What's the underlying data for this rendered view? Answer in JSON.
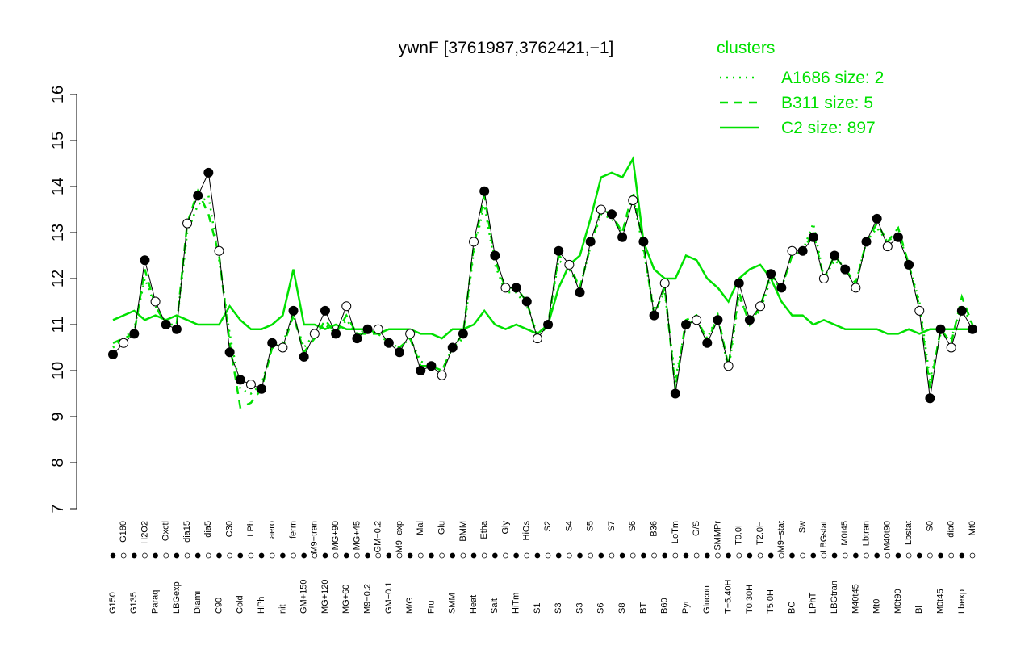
{
  "chart_data": {
    "type": "line",
    "title": "ywnF [3761987,3762421,−1]",
    "legend_title": "clusters",
    "legend_color": "#00e000",
    "categories": [
      "G150",
      "G180",
      "G135",
      "H2O2",
      "Paraq",
      "Oxctl",
      "LBGexp",
      "dia15",
      "Diami",
      "dia5",
      "C90",
      "C30",
      "Cold",
      "LPh",
      "HPh",
      "aero",
      "nit",
      "ferm",
      "GM+150",
      "M9−tran",
      "MG+120",
      "MG+90",
      "MG+60",
      "MG+45",
      "M9−0.2",
      "GM−0.2",
      "GM−0.1",
      "M9−exp",
      "M/G",
      "Mal",
      "Fru",
      "Glu",
      "SMM",
      "BMM",
      "Heat",
      "Etha",
      "Salt",
      "Gly",
      "HiTm",
      "HiOs",
      "S1",
      "S2",
      "S3",
      "S4",
      "S3",
      "S5",
      "S6",
      "S7",
      "S8",
      "S6",
      "BT",
      "B36",
      "B60",
      "LoTm",
      "Pyr",
      "G/S",
      "Glucon",
      "SMMPr",
      "T−5.40H",
      "T0.0H",
      "T0.30H",
      "T2.0H",
      "T5.0H",
      "M9−stat",
      "BC",
      "Sw",
      "LPhT",
      "LBGstat",
      "LBGtran",
      "M0t45",
      "M40t45",
      "Lbtran",
      "Mt0",
      "M40t90",
      "M0t90",
      "Lbstat",
      "Bl",
      "S0",
      "M0t45",
      "dia0",
      "Lbexp",
      "Mt0"
    ],
    "values": [
      10.35,
      10.6,
      10.8,
      12.4,
      11.5,
      11.0,
      10.9,
      13.2,
      13.8,
      14.3,
      12.6,
      10.4,
      9.8,
      9.7,
      9.6,
      10.6,
      10.5,
      11.3,
      10.3,
      10.8,
      11.3,
      10.8,
      11.4,
      10.7,
      10.9,
      10.9,
      10.6,
      10.4,
      10.8,
      10.0,
      10.1,
      9.9,
      10.5,
      10.8,
      12.8,
      13.9,
      12.5,
      11.8,
      11.8,
      11.5,
      10.7,
      11.0,
      12.6,
      12.3,
      11.7,
      12.8,
      13.5,
      13.4,
      12.9,
      13.7,
      12.8,
      11.2,
      11.9,
      9.5,
      11.0,
      11.1,
      10.6,
      11.1,
      10.1,
      11.9,
      11.1,
      11.4,
      12.1,
      11.8,
      12.6,
      12.6,
      12.9,
      12.0,
      12.5,
      12.2,
      11.8,
      12.8,
      13.3,
      12.7,
      12.9,
      12.3,
      11.3,
      9.4,
      10.9,
      10.5,
      11.3,
      10.9
    ],
    "series": [
      {
        "name": "A1686 size: 2",
        "color": "#00e000",
        "dash": "2 6",
        "values": [
          10.5,
          10.7,
          10.9,
          12.0,
          11.4,
          11.0,
          11.0,
          13.0,
          13.6,
          13.8,
          12.4,
          10.8,
          9.6,
          9.5,
          9.7,
          10.5,
          10.6,
          11.2,
          10.5,
          10.8,
          11.0,
          10.8,
          11.1,
          10.8,
          10.9,
          10.8,
          10.6,
          10.5,
          10.7,
          10.2,
          10.1,
          10.0,
          10.5,
          10.7,
          12.6,
          13.6,
          12.3,
          11.7,
          11.7,
          11.4,
          10.8,
          11.0,
          12.4,
          12.2,
          11.8,
          12.7,
          13.4,
          13.3,
          13.0,
          13.8,
          12.6,
          11.3,
          11.7,
          9.8,
          11.0,
          11.1,
          10.7,
          11.2,
          10.0,
          11.6,
          11.1,
          11.3,
          12.0,
          11.8,
          12.5,
          12.6,
          13.2,
          12.0,
          12.4,
          12.2,
          11.9,
          12.8,
          13.1,
          12.8,
          13.0,
          12.3,
          11.5,
          9.8,
          10.8,
          10.7,
          11.4,
          11.0
        ]
      },
      {
        "name": "B311 size: 5",
        "color": "#00e000",
        "dash": "10 8",
        "values": [
          10.6,
          10.7,
          10.8,
          12.2,
          11.4,
          11.0,
          11.0,
          13.2,
          13.9,
          13.4,
          12.5,
          10.6,
          9.2,
          9.3,
          9.6,
          10.5,
          10.5,
          11.2,
          10.4,
          10.7,
          11.1,
          10.8,
          11.2,
          10.8,
          10.8,
          10.8,
          10.6,
          10.5,
          10.7,
          10.1,
          10.1,
          10.0,
          10.5,
          10.8,
          12.7,
          13.8,
          12.4,
          11.8,
          11.8,
          11.5,
          10.7,
          11.0,
          12.5,
          12.3,
          11.8,
          12.7,
          13.5,
          13.4,
          13.0,
          13.9,
          12.7,
          11.2,
          11.8,
          9.6,
          11.1,
          11.2,
          10.6,
          11.2,
          10.1,
          11.7,
          11.0,
          11.4,
          12.1,
          11.8,
          12.5,
          12.6,
          13.0,
          12.0,
          12.5,
          12.2,
          11.9,
          12.8,
          13.2,
          12.8,
          13.1,
          12.3,
          11.4,
          9.6,
          10.9,
          10.6,
          11.6,
          11.0
        ]
      },
      {
        "name": "C2 size: 897",
        "color": "#00e000",
        "dash": "",
        "values": [
          11.1,
          11.2,
          11.3,
          11.1,
          11.2,
          11.1,
          11.2,
          11.1,
          11.0,
          11.0,
          11.0,
          11.4,
          11.1,
          10.9,
          10.9,
          11.0,
          11.2,
          12.2,
          11.0,
          11.0,
          10.9,
          11.0,
          10.9,
          10.9,
          10.9,
          10.8,
          10.9,
          10.9,
          10.9,
          10.8,
          10.8,
          10.7,
          10.9,
          10.9,
          11.0,
          11.3,
          11.0,
          10.9,
          11.0,
          10.9,
          10.8,
          11.0,
          11.8,
          12.3,
          12.5,
          13.3,
          14.2,
          14.3,
          14.2,
          14.6,
          12.8,
          12.2,
          12.0,
          12.0,
          12.5,
          12.4,
          12.0,
          11.8,
          11.5,
          12.0,
          12.2,
          12.3,
          12.0,
          11.5,
          11.2,
          11.2,
          11.0,
          11.1,
          11.0,
          10.9,
          10.9,
          10.9,
          10.9,
          10.8,
          10.8,
          10.9,
          10.8,
          10.9,
          10.9,
          10.9,
          10.9,
          10.9
        ]
      }
    ],
    "ylim": [
      7,
      16
    ],
    "yticks": [
      7,
      8,
      9,
      10,
      11,
      12,
      13,
      14,
      15,
      16
    ]
  }
}
